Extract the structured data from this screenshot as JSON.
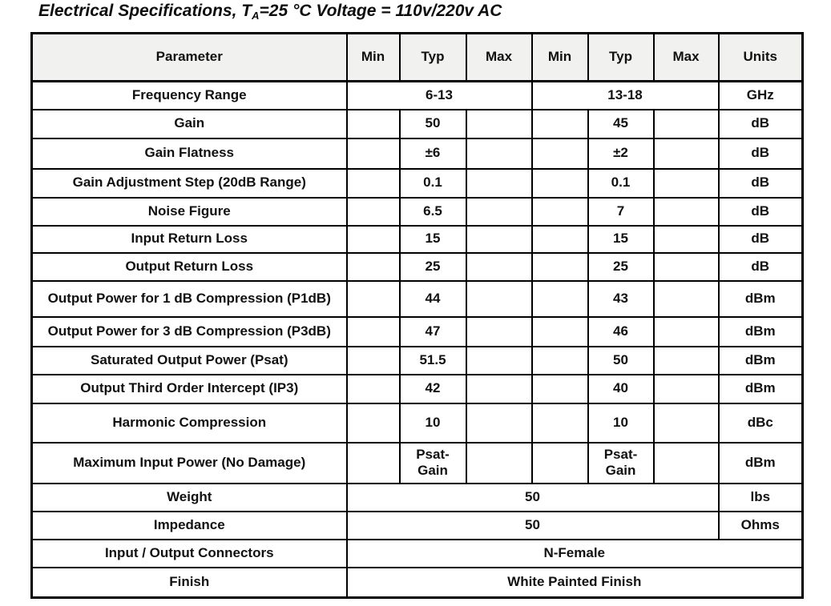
{
  "title": {
    "prefix": "Electrical Specifications, T",
    "subscript": "A",
    "suffix": "=25 °C Voltage = 110v/220v AC"
  },
  "table": {
    "headers": [
      "Parameter",
      "Min",
      "Typ",
      "Max",
      "Min",
      "Typ",
      "Max",
      "Units"
    ],
    "rows": [
      {
        "param": "Frequency Range",
        "cells": [
          {
            "t": "6-13",
            "s": 3
          },
          {
            "t": "13-18",
            "s": 3
          }
        ],
        "unit": "GHz"
      },
      {
        "param": "Gain",
        "cells": [
          {
            "t": "",
            "s": 1
          },
          {
            "t": "50",
            "s": 1
          },
          {
            "t": "",
            "s": 1
          },
          {
            "t": "",
            "s": 1
          },
          {
            "t": "45",
            "s": 1
          },
          {
            "t": "",
            "s": 1
          }
        ],
        "unit": "dB"
      },
      {
        "param": "Gain Flatness",
        "cells": [
          {
            "t": "",
            "s": 1
          },
          {
            "t": "±6",
            "s": 1
          },
          {
            "t": "",
            "s": 1
          },
          {
            "t": "",
            "s": 1
          },
          {
            "t": "±2",
            "s": 1
          },
          {
            "t": "",
            "s": 1
          }
        ],
        "unit": "dB"
      },
      {
        "param": "Gain Adjustment Step (20dB Range)",
        "cells": [
          {
            "t": "",
            "s": 1
          },
          {
            "t": "0.1",
            "s": 1
          },
          {
            "t": "",
            "s": 1
          },
          {
            "t": "",
            "s": 1
          },
          {
            "t": "0.1",
            "s": 1
          },
          {
            "t": "",
            "s": 1
          }
        ],
        "unit": "dB"
      },
      {
        "param": "Noise Figure",
        "cells": [
          {
            "t": "",
            "s": 1
          },
          {
            "t": "6.5",
            "s": 1
          },
          {
            "t": "",
            "s": 1
          },
          {
            "t": "",
            "s": 1
          },
          {
            "t": "7",
            "s": 1
          },
          {
            "t": "",
            "s": 1
          }
        ],
        "unit": "dB"
      },
      {
        "param": "Input Return Loss",
        "cells": [
          {
            "t": "",
            "s": 1
          },
          {
            "t": "15",
            "s": 1
          },
          {
            "t": "",
            "s": 1
          },
          {
            "t": "",
            "s": 1
          },
          {
            "t": "15",
            "s": 1
          },
          {
            "t": "",
            "s": 1
          }
        ],
        "unit": "dB"
      },
      {
        "param": "Output Return Loss",
        "cells": [
          {
            "t": "",
            "s": 1
          },
          {
            "t": "25",
            "s": 1
          },
          {
            "t": "",
            "s": 1
          },
          {
            "t": "",
            "s": 1
          },
          {
            "t": "25",
            "s": 1
          },
          {
            "t": "",
            "s": 1
          }
        ],
        "unit": "dB"
      },
      {
        "param": "Output Power for 1 dB Compression (P1dB)",
        "cells": [
          {
            "t": "",
            "s": 1
          },
          {
            "t": "44",
            "s": 1
          },
          {
            "t": "",
            "s": 1
          },
          {
            "t": "",
            "s": 1
          },
          {
            "t": "43",
            "s": 1
          },
          {
            "t": "",
            "s": 1
          }
        ],
        "unit": "dBm"
      },
      {
        "param": "Output Power for 3 dB Compression (P3dB)",
        "cells": [
          {
            "t": "",
            "s": 1
          },
          {
            "t": "47",
            "s": 1
          },
          {
            "t": "",
            "s": 1
          },
          {
            "t": "",
            "s": 1
          },
          {
            "t": "46",
            "s": 1
          },
          {
            "t": "",
            "s": 1
          }
        ],
        "unit": "dBm"
      },
      {
        "param": "Saturated Output Power (Psat)",
        "cells": [
          {
            "t": "",
            "s": 1
          },
          {
            "t": "51.5",
            "s": 1
          },
          {
            "t": "",
            "s": 1
          },
          {
            "t": "",
            "s": 1
          },
          {
            "t": "50",
            "s": 1
          },
          {
            "t": "",
            "s": 1
          }
        ],
        "unit": "dBm"
      },
      {
        "param": "Output Third Order Intercept (IP3)",
        "cells": [
          {
            "t": "",
            "s": 1
          },
          {
            "t": "42",
            "s": 1
          },
          {
            "t": "",
            "s": 1
          },
          {
            "t": "",
            "s": 1
          },
          {
            "t": "40",
            "s": 1
          },
          {
            "t": "",
            "s": 1
          }
        ],
        "unit": "dBm"
      },
      {
        "param": "Harmonic Compression",
        "cells": [
          {
            "t": "",
            "s": 1
          },
          {
            "t": "10",
            "s": 1
          },
          {
            "t": "",
            "s": 1
          },
          {
            "t": "",
            "s": 1
          },
          {
            "t": "10",
            "s": 1
          },
          {
            "t": "",
            "s": 1
          }
        ],
        "unit": "dBc"
      },
      {
        "param": "Maximum Input Power (No Damage)",
        "cells": [
          {
            "t": "",
            "s": 1
          },
          {
            "t": "Psat-\nGain",
            "s": 1
          },
          {
            "t": "",
            "s": 1
          },
          {
            "t": "",
            "s": 1
          },
          {
            "t": "Psat-\nGain",
            "s": 1
          },
          {
            "t": "",
            "s": 1
          }
        ],
        "unit": "dBm"
      },
      {
        "param": "Weight",
        "cells": [
          {
            "t": "50",
            "s": 6
          }
        ],
        "unit": "lbs"
      },
      {
        "param": "Impedance",
        "cells": [
          {
            "t": "50",
            "s": 6
          }
        ],
        "unit": "Ohms"
      },
      {
        "param": "Input / Output Connectors",
        "cells": [
          {
            "t": "N-Female",
            "s": 7
          }
        ],
        "unit": null
      },
      {
        "param": "Finish",
        "cells": [
          {
            "t": "White Painted Finish",
            "s": 7
          }
        ],
        "unit": null
      }
    ]
  }
}
